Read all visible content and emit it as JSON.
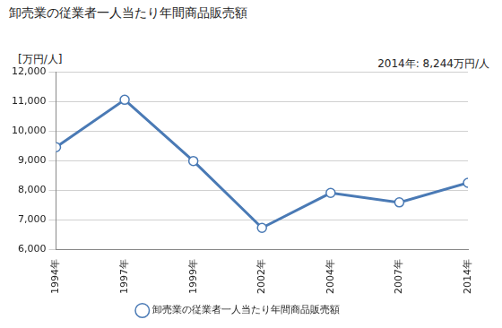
{
  "chart_data": {
    "type": "line",
    "title": "卸売業の従業者一人当たり年間商品販売額",
    "y_label": "[万円/人]",
    "annotations": [
      "2014年: 8,244万円/人"
    ],
    "categories": [
      "1994年",
      "1997年",
      "1999年",
      "2002年",
      "2004年",
      "2007年",
      "2014年"
    ],
    "series": [
      {
        "name": "卸売業の従業者一人当たり年間商品販売額",
        "color": "#4a7ab5",
        "marker": "circle",
        "values": [
          9450,
          11050,
          8980,
          6720,
          7900,
          7580,
          8244
        ]
      }
    ],
    "ylim": [
      6000,
      12000
    ],
    "yticks": [
      {
        "value": 6000,
        "label": "6,000"
      },
      {
        "value": 7000,
        "label": "7,000"
      },
      {
        "value": 8000,
        "label": "8,000"
      },
      {
        "value": 9000,
        "label": "9,000"
      },
      {
        "value": 10000,
        "label": "10,000"
      },
      {
        "value": 11000,
        "label": "11,000"
      },
      {
        "value": 12000,
        "label": "12,000"
      }
    ],
    "grid": true,
    "legend": "bottom"
  }
}
